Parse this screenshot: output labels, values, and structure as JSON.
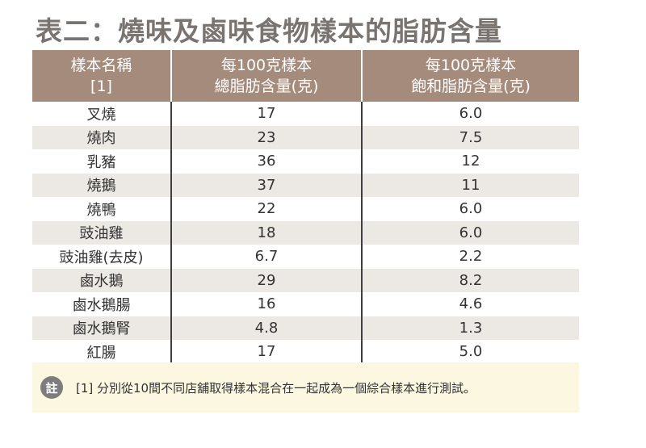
{
  "title": "表二：燒味及鹵味食物樣本的脂肪含量",
  "table": {
    "headers": [
      [
        "樣本名稱",
        "[1]"
      ],
      [
        "每100克樣本",
        "總脂肪含量(克)"
      ],
      [
        "每100克樣本",
        "飽和脂肪含量(克)"
      ]
    ],
    "rows": [
      [
        "叉燒",
        "17",
        "6.0"
      ],
      [
        "燒肉",
        "23",
        "7.5"
      ],
      [
        "乳豬",
        "36",
        "12"
      ],
      [
        "燒鵝",
        "37",
        "11"
      ],
      [
        "燒鴨",
        "22",
        "6.0"
      ],
      [
        "豉油雞",
        "18",
        "6.0"
      ],
      [
        "豉油雞(去皮)",
        "6.7",
        "2.2"
      ],
      [
        "鹵水鵝",
        "29",
        "8.2"
      ],
      [
        "鹵水鵝腸",
        "16",
        "4.6"
      ],
      [
        "鹵水鵝腎",
        "4.8",
        "1.3"
      ],
      [
        "紅腸",
        "17",
        "5.0"
      ]
    ]
  },
  "note": {
    "badge": "註",
    "text": "[1]  分別從10間不同店舖取得樣本混合在一起成為一個綜合樣本進行測試。"
  },
  "colors": {
    "header_bg": "#a48b7c",
    "title": "#7a7471",
    "stripe": "#ece8e4",
    "note_bg": "#fcf7e1",
    "badge": "#7d7d7d"
  }
}
